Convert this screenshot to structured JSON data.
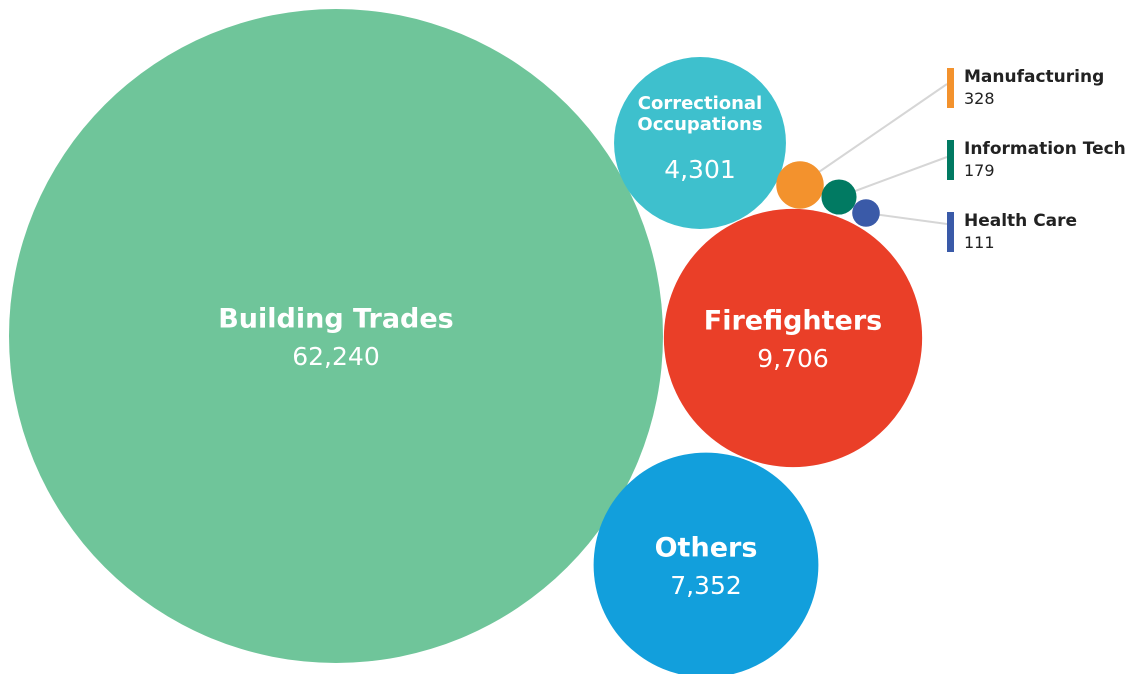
{
  "chart_data": {
    "type": "bubble",
    "title": "",
    "grid": false,
    "items": [
      {
        "id": "building-trades",
        "label": "Building Trades",
        "value": 62240,
        "display": "62,240",
        "color": "#6fc59a"
      },
      {
        "id": "firefighters",
        "label": "Firefighters",
        "value": 9706,
        "display": "9,706",
        "color": "#ea3f28"
      },
      {
        "id": "others",
        "label": "Others",
        "value": 7352,
        "display": "7,352",
        "color": "#129fdc"
      },
      {
        "id": "correctional-occupations",
        "label": "Correctional Occupations",
        "label_lines": [
          "Correctional",
          "Occupations"
        ],
        "value": 4301,
        "display": "4,301",
        "color": "#3ec0cd"
      },
      {
        "id": "manufacturing",
        "label": "Manufacturing",
        "value": 328,
        "display": "328",
        "color": "#f3922d"
      },
      {
        "id": "information-tech",
        "label": "Information Tech",
        "value": 179,
        "display": "179",
        "color": "#017a62"
      },
      {
        "id": "health-care",
        "label": "Health Care",
        "value": 111,
        "display": "111",
        "color": "#3a5aa8"
      }
    ]
  }
}
